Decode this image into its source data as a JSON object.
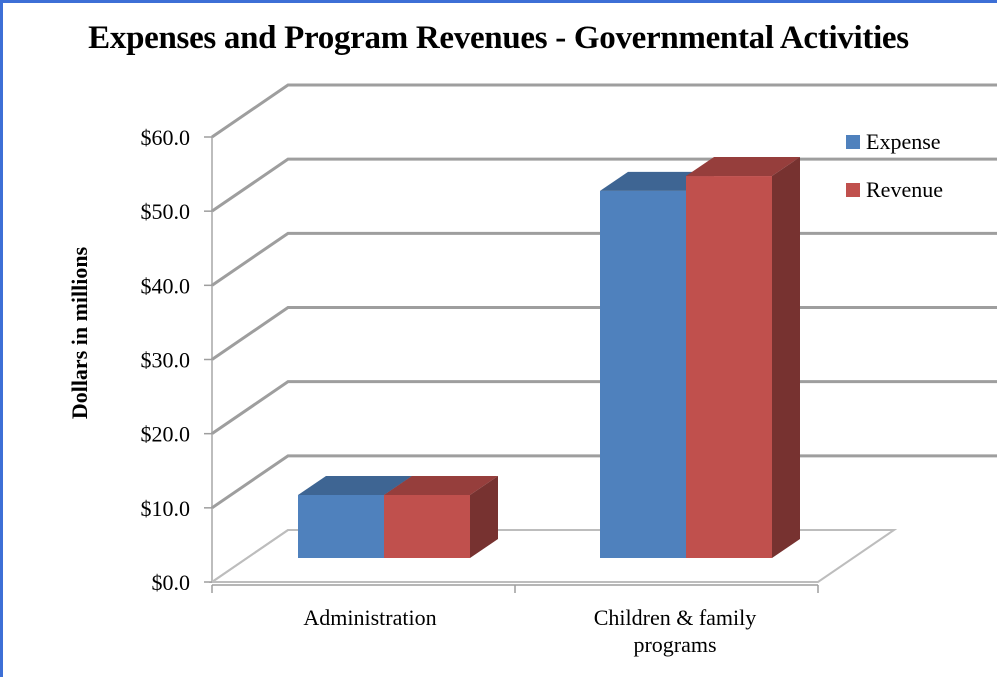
{
  "chart_data": {
    "type": "bar",
    "title": "Expenses and Program Revenues - Governmental Activities",
    "ylabel": "Dollars in millions",
    "xlabel": "",
    "categories": [
      "Administration",
      "Children & family programs"
    ],
    "series": [
      {
        "name": "Expense",
        "values": [
          8.5,
          49.5
        ],
        "color": "#4f81bd"
      },
      {
        "name": "Revenue",
        "values": [
          8.5,
          51.5
        ],
        "color": "#c0504d"
      }
    ],
    "ylim": [
      0,
      60
    ],
    "yticks": [
      "$0.0",
      "$10.0",
      "$20.0",
      "$30.0",
      "$40.0",
      "$50.0",
      "$60.0"
    ],
    "grid": true,
    "legend": "right",
    "style": "3d-column"
  }
}
